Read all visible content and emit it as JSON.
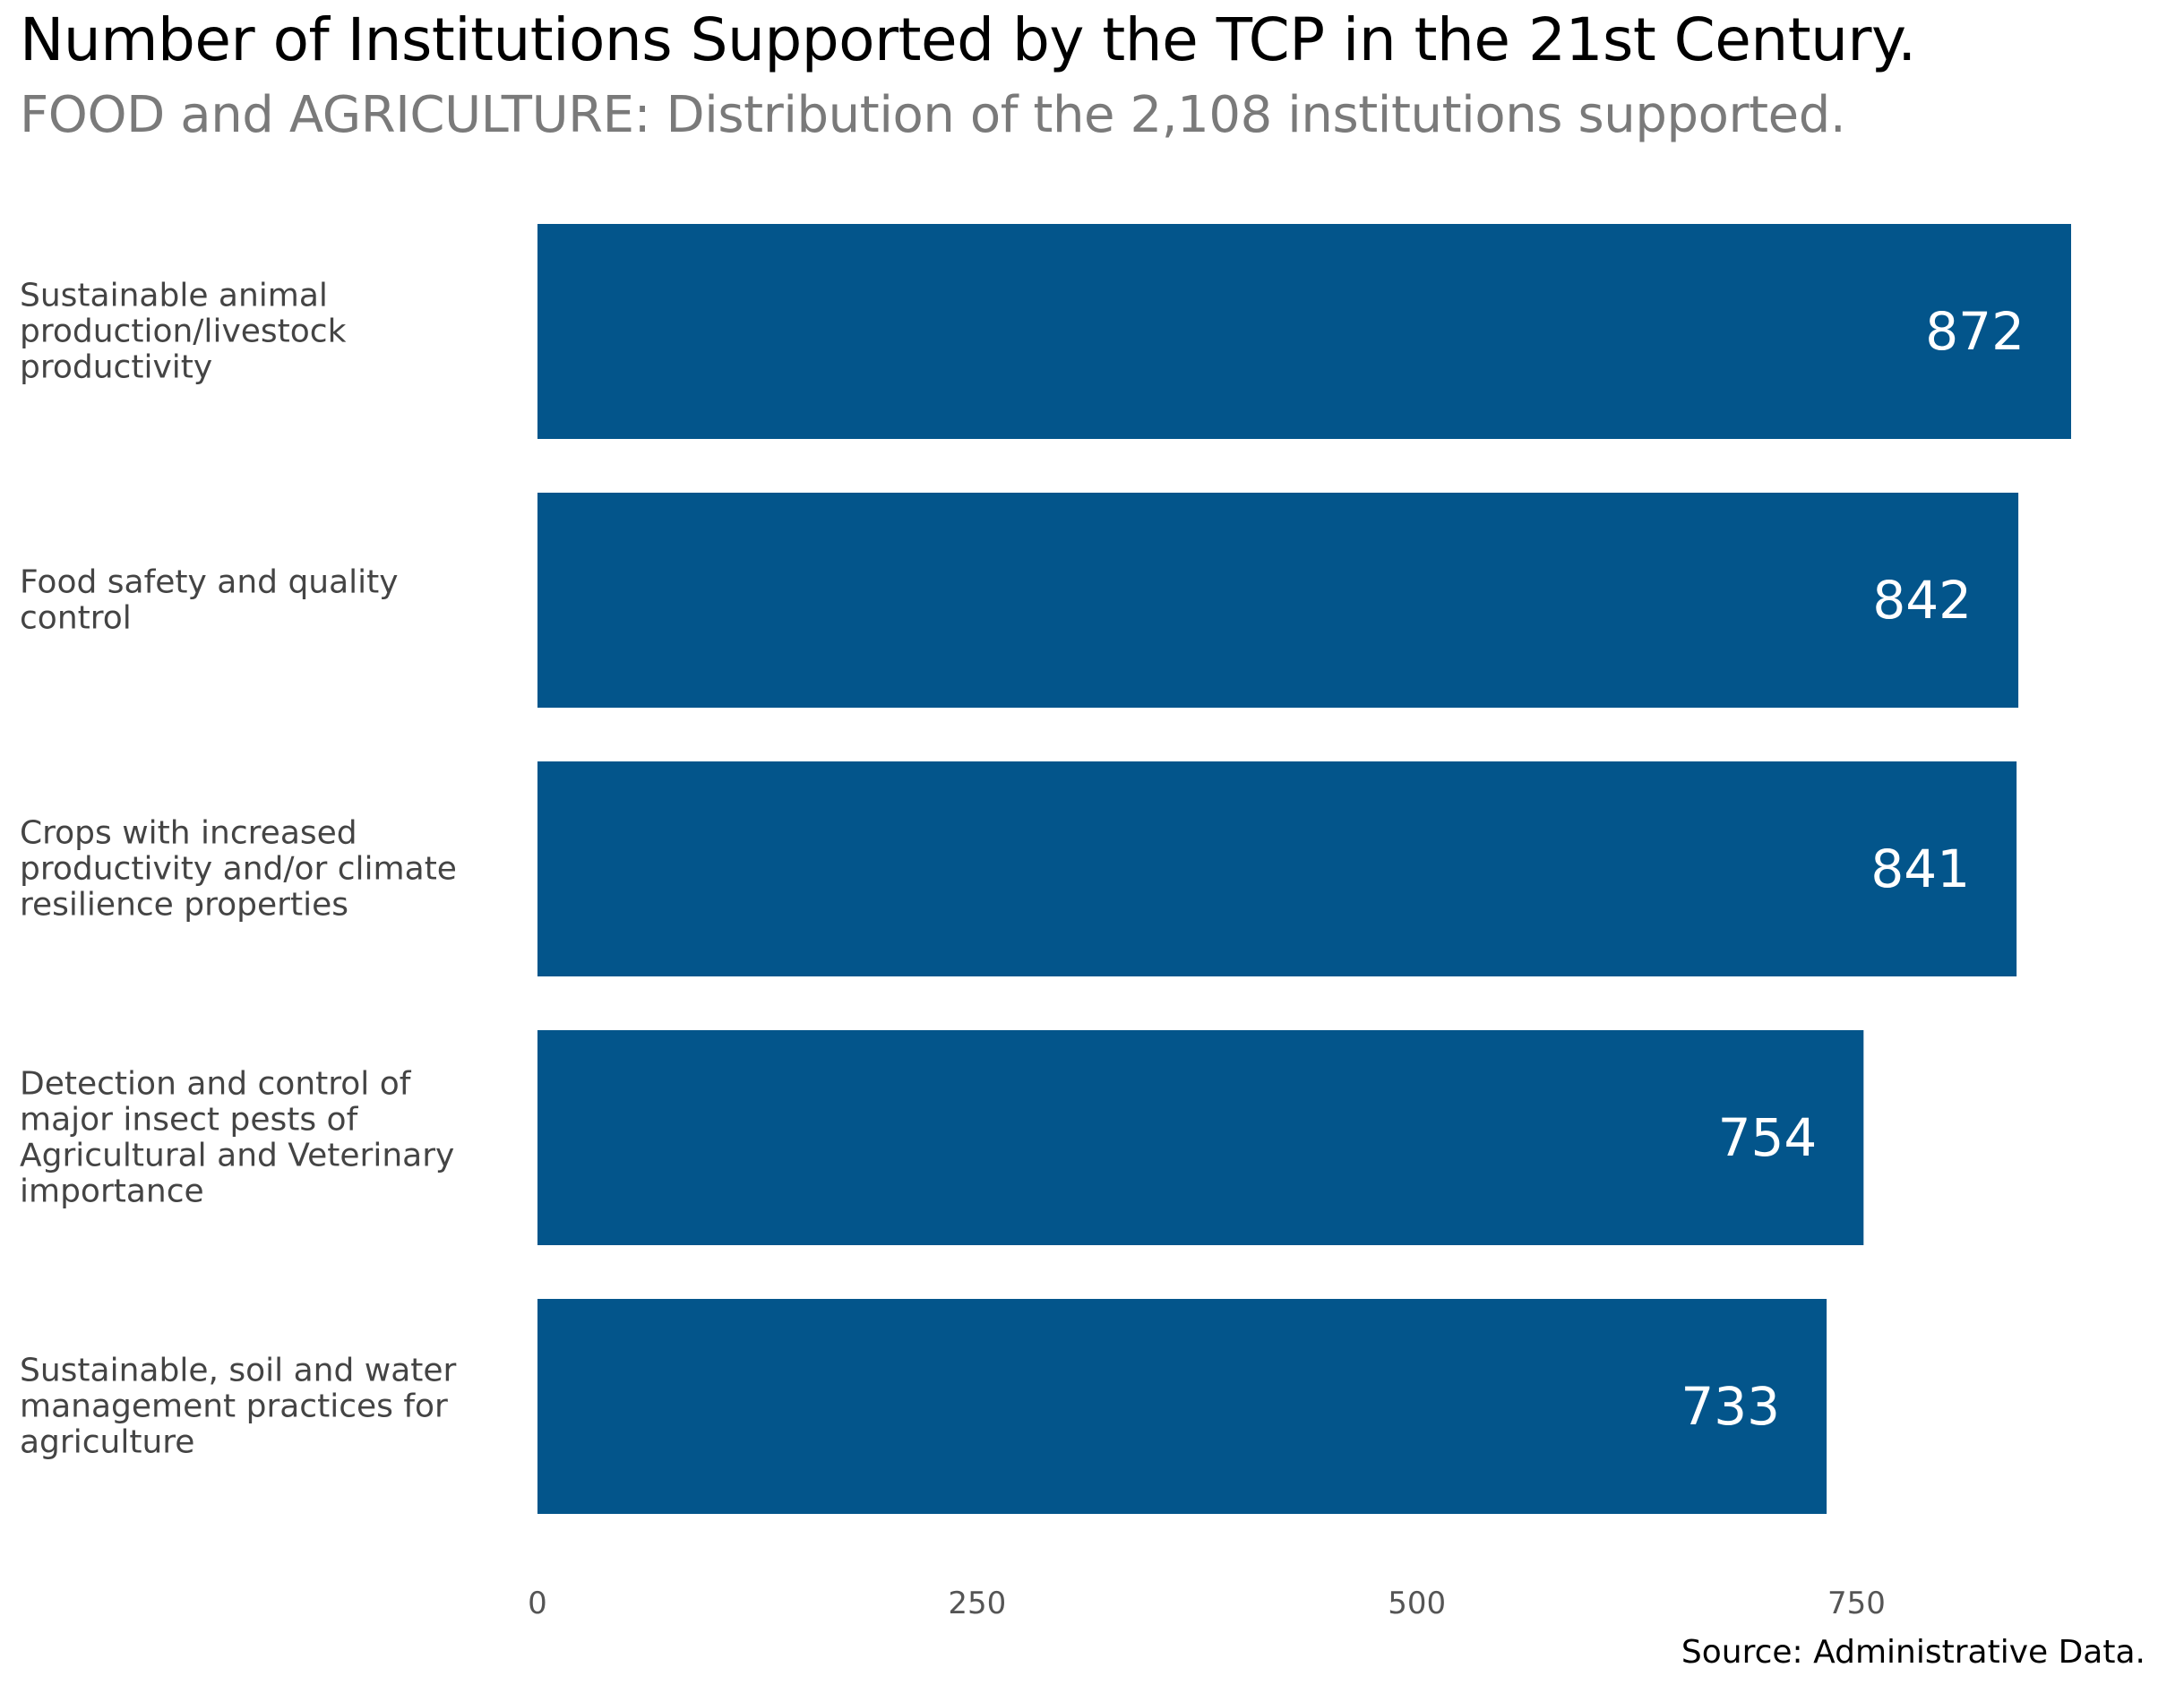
{
  "chart_data": {
    "type": "bar",
    "orientation": "horizontal",
    "title": "Number of Institutions Supported by the TCP in the 21st Century.",
    "subtitle": "FOOD and AGRICULTURE: Distribution of the 2,108 institutions supported.",
    "categories": [
      [
        "Sustainable animal",
        "production/livestock",
        "productivity"
      ],
      [
        "Food safety and quality",
        "control"
      ],
      [
        "Crops with increased",
        "productivity and/or climate",
        "resilience properties"
      ],
      [
        "Detection and control of",
        "major insect pests of",
        "Agricultural and Veterinary",
        "importance"
      ],
      [
        "Sustainable, soil and water",
        "management practices for",
        "agriculture"
      ]
    ],
    "values": [
      872,
      842,
      841,
      754,
      733
    ],
    "value_labels": [
      "872",
      "842",
      "841",
      "754",
      "733"
    ],
    "xlim": [
      0,
      872
    ],
    "ticks": [
      0,
      250,
      500,
      750
    ],
    "tick_labels": [
      "0",
      "250",
      "500",
      "750"
    ],
    "xlabel": "",
    "ylabel": "",
    "grid": false,
    "bar_color": "#03558b",
    "source": "Source: Administrative Data."
  }
}
